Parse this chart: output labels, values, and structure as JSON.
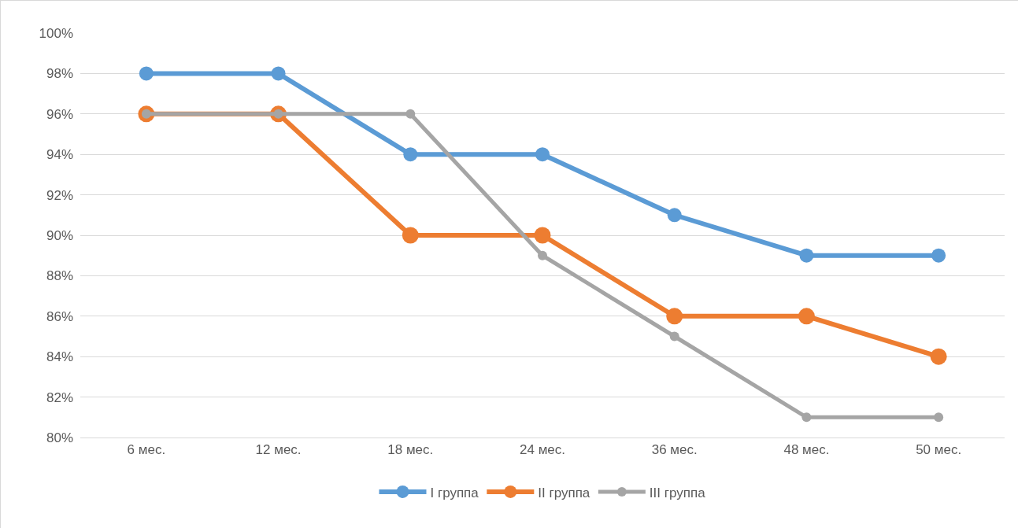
{
  "chart_data": {
    "type": "line",
    "categories": [
      "6 мес.",
      "12 мес.",
      "18 мес.",
      "24 мес.",
      "36 мес.",
      "48 мес.",
      "50 мес."
    ],
    "series": [
      {
        "name": "I группа",
        "color": "#5b9bd5",
        "values": [
          98,
          98,
          94,
          94,
          91,
          89,
          89
        ]
      },
      {
        "name": "II группа",
        "color": "#ed7d31",
        "values": [
          96,
          96,
          90,
          90,
          86,
          86,
          84
        ]
      },
      {
        "name": "III группа",
        "color": "#a5a5a5",
        "values": [
          96,
          96,
          96,
          89,
          85,
          81,
          81
        ]
      }
    ],
    "ylim": [
      80,
      100
    ],
    "yticks": [
      {
        "value": 80,
        "label": "80%"
      },
      {
        "value": 82,
        "label": "82%"
      },
      {
        "value": 84,
        "label": "84%"
      },
      {
        "value": 86,
        "label": "86%"
      },
      {
        "value": 88,
        "label": "88%"
      },
      {
        "value": 90,
        "label": "90%"
      },
      {
        "value": 92,
        "label": "92%"
      },
      {
        "value": 94,
        "label": "94%"
      },
      {
        "value": 96,
        "label": "96%"
      },
      {
        "value": 98,
        "label": "98%"
      },
      {
        "value": 100,
        "label": "100%"
      }
    ],
    "grid": "y",
    "legend": "bottom",
    "marker": "circle",
    "line_style": "solid"
  }
}
